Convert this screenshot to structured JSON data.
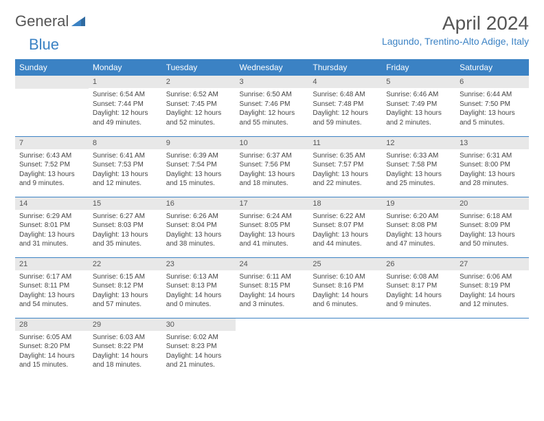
{
  "logo": {
    "word1": "General",
    "word2": "Blue"
  },
  "title": "April 2024",
  "location": "Lagundo, Trentino-Alto Adige, Italy",
  "colors": {
    "brand_blue": "#3b82c4",
    "header_text": "#ffffff",
    "daynum_bg": "#e8e8e8",
    "text": "#444444",
    "title_text": "#555555"
  },
  "day_headers": [
    "Sunday",
    "Monday",
    "Tuesday",
    "Wednesday",
    "Thursday",
    "Friday",
    "Saturday"
  ],
  "weeks": [
    [
      null,
      {
        "n": "1",
        "sr": "Sunrise: 6:54 AM",
        "ss": "Sunset: 7:44 PM",
        "d1": "Daylight: 12 hours",
        "d2": "and 49 minutes."
      },
      {
        "n": "2",
        "sr": "Sunrise: 6:52 AM",
        "ss": "Sunset: 7:45 PM",
        "d1": "Daylight: 12 hours",
        "d2": "and 52 minutes."
      },
      {
        "n": "3",
        "sr": "Sunrise: 6:50 AM",
        "ss": "Sunset: 7:46 PM",
        "d1": "Daylight: 12 hours",
        "d2": "and 55 minutes."
      },
      {
        "n": "4",
        "sr": "Sunrise: 6:48 AM",
        "ss": "Sunset: 7:48 PM",
        "d1": "Daylight: 12 hours",
        "d2": "and 59 minutes."
      },
      {
        "n": "5",
        "sr": "Sunrise: 6:46 AM",
        "ss": "Sunset: 7:49 PM",
        "d1": "Daylight: 13 hours",
        "d2": "and 2 minutes."
      },
      {
        "n": "6",
        "sr": "Sunrise: 6:44 AM",
        "ss": "Sunset: 7:50 PM",
        "d1": "Daylight: 13 hours",
        "d2": "and 5 minutes."
      }
    ],
    [
      {
        "n": "7",
        "sr": "Sunrise: 6:43 AM",
        "ss": "Sunset: 7:52 PM",
        "d1": "Daylight: 13 hours",
        "d2": "and 9 minutes."
      },
      {
        "n": "8",
        "sr": "Sunrise: 6:41 AM",
        "ss": "Sunset: 7:53 PM",
        "d1": "Daylight: 13 hours",
        "d2": "and 12 minutes."
      },
      {
        "n": "9",
        "sr": "Sunrise: 6:39 AM",
        "ss": "Sunset: 7:54 PM",
        "d1": "Daylight: 13 hours",
        "d2": "and 15 minutes."
      },
      {
        "n": "10",
        "sr": "Sunrise: 6:37 AM",
        "ss": "Sunset: 7:56 PM",
        "d1": "Daylight: 13 hours",
        "d2": "and 18 minutes."
      },
      {
        "n": "11",
        "sr": "Sunrise: 6:35 AM",
        "ss": "Sunset: 7:57 PM",
        "d1": "Daylight: 13 hours",
        "d2": "and 22 minutes."
      },
      {
        "n": "12",
        "sr": "Sunrise: 6:33 AM",
        "ss": "Sunset: 7:58 PM",
        "d1": "Daylight: 13 hours",
        "d2": "and 25 minutes."
      },
      {
        "n": "13",
        "sr": "Sunrise: 6:31 AM",
        "ss": "Sunset: 8:00 PM",
        "d1": "Daylight: 13 hours",
        "d2": "and 28 minutes."
      }
    ],
    [
      {
        "n": "14",
        "sr": "Sunrise: 6:29 AM",
        "ss": "Sunset: 8:01 PM",
        "d1": "Daylight: 13 hours",
        "d2": "and 31 minutes."
      },
      {
        "n": "15",
        "sr": "Sunrise: 6:27 AM",
        "ss": "Sunset: 8:03 PM",
        "d1": "Daylight: 13 hours",
        "d2": "and 35 minutes."
      },
      {
        "n": "16",
        "sr": "Sunrise: 6:26 AM",
        "ss": "Sunset: 8:04 PM",
        "d1": "Daylight: 13 hours",
        "d2": "and 38 minutes."
      },
      {
        "n": "17",
        "sr": "Sunrise: 6:24 AM",
        "ss": "Sunset: 8:05 PM",
        "d1": "Daylight: 13 hours",
        "d2": "and 41 minutes."
      },
      {
        "n": "18",
        "sr": "Sunrise: 6:22 AM",
        "ss": "Sunset: 8:07 PM",
        "d1": "Daylight: 13 hours",
        "d2": "and 44 minutes."
      },
      {
        "n": "19",
        "sr": "Sunrise: 6:20 AM",
        "ss": "Sunset: 8:08 PM",
        "d1": "Daylight: 13 hours",
        "d2": "and 47 minutes."
      },
      {
        "n": "20",
        "sr": "Sunrise: 6:18 AM",
        "ss": "Sunset: 8:09 PM",
        "d1": "Daylight: 13 hours",
        "d2": "and 50 minutes."
      }
    ],
    [
      {
        "n": "21",
        "sr": "Sunrise: 6:17 AM",
        "ss": "Sunset: 8:11 PM",
        "d1": "Daylight: 13 hours",
        "d2": "and 54 minutes."
      },
      {
        "n": "22",
        "sr": "Sunrise: 6:15 AM",
        "ss": "Sunset: 8:12 PM",
        "d1": "Daylight: 13 hours",
        "d2": "and 57 minutes."
      },
      {
        "n": "23",
        "sr": "Sunrise: 6:13 AM",
        "ss": "Sunset: 8:13 PM",
        "d1": "Daylight: 14 hours",
        "d2": "and 0 minutes."
      },
      {
        "n": "24",
        "sr": "Sunrise: 6:11 AM",
        "ss": "Sunset: 8:15 PM",
        "d1": "Daylight: 14 hours",
        "d2": "and 3 minutes."
      },
      {
        "n": "25",
        "sr": "Sunrise: 6:10 AM",
        "ss": "Sunset: 8:16 PM",
        "d1": "Daylight: 14 hours",
        "d2": "and 6 minutes."
      },
      {
        "n": "26",
        "sr": "Sunrise: 6:08 AM",
        "ss": "Sunset: 8:17 PM",
        "d1": "Daylight: 14 hours",
        "d2": "and 9 minutes."
      },
      {
        "n": "27",
        "sr": "Sunrise: 6:06 AM",
        "ss": "Sunset: 8:19 PM",
        "d1": "Daylight: 14 hours",
        "d2": "and 12 minutes."
      }
    ],
    [
      {
        "n": "28",
        "sr": "Sunrise: 6:05 AM",
        "ss": "Sunset: 8:20 PM",
        "d1": "Daylight: 14 hours",
        "d2": "and 15 minutes."
      },
      {
        "n": "29",
        "sr": "Sunrise: 6:03 AM",
        "ss": "Sunset: 8:22 PM",
        "d1": "Daylight: 14 hours",
        "d2": "and 18 minutes."
      },
      {
        "n": "30",
        "sr": "Sunrise: 6:02 AM",
        "ss": "Sunset: 8:23 PM",
        "d1": "Daylight: 14 hours",
        "d2": "and 21 minutes."
      },
      null,
      null,
      null,
      null
    ]
  ]
}
